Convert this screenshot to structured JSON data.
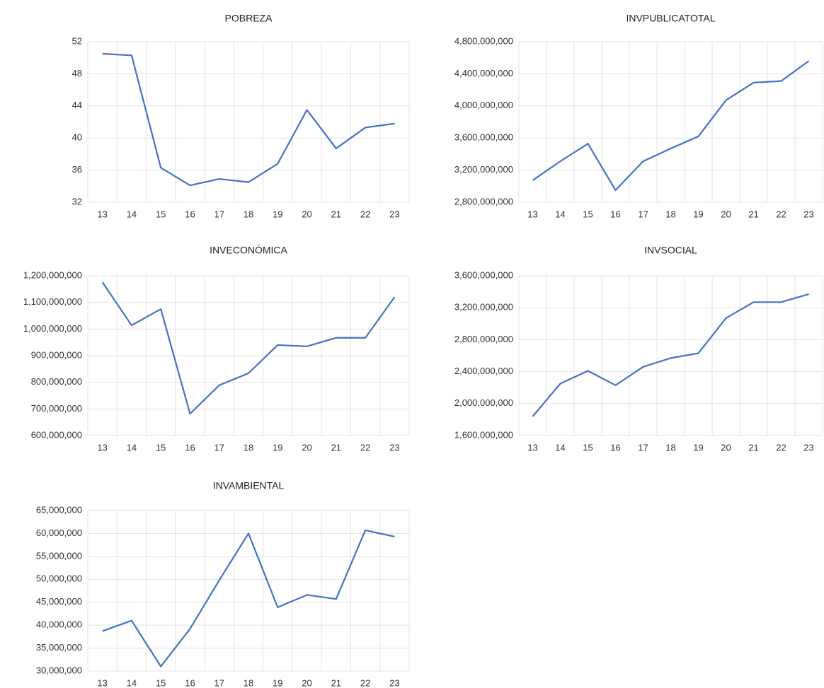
{
  "chart_data": [
    {
      "type": "line",
      "title": "POBREZA",
      "color": "#4472c4",
      "grid": true,
      "categories": [
        "13",
        "14",
        "15",
        "16",
        "17",
        "18",
        "19",
        "20",
        "21",
        "22",
        "23"
      ],
      "values": [
        50.5,
        50.3,
        36.3,
        34.1,
        34.9,
        34.5,
        36.8,
        43.5,
        38.7,
        41.3,
        41.8
      ],
      "ylim": [
        32,
        52
      ],
      "yticks": [
        32,
        36,
        40,
        44,
        48,
        52
      ]
    },
    {
      "type": "line",
      "title": "INVPUBLICATOTAL",
      "color": "#4472c4",
      "grid": true,
      "categories": [
        "13",
        "14",
        "15",
        "16",
        "17",
        "18",
        "19",
        "20",
        "21",
        "22",
        "23"
      ],
      "values": [
        3073000000,
        3310000000,
        3530000000,
        2950000000,
        3310000000,
        3470000000,
        3620000000,
        4070000000,
        4290000000,
        4310000000,
        4560000000
      ],
      "ylim": [
        2800000000,
        4800000000
      ],
      "yticks": [
        {
          "value": 2800000000,
          "label": "2,800,000,000"
        },
        {
          "value": 3200000000,
          "label": "3,200,000,000"
        },
        {
          "value": 3600000000,
          "label": "3,600,000,000"
        },
        {
          "value": 4000000000,
          "label": "4,000,000,000"
        },
        {
          "value": 4400000000,
          "label": "4,400,000,000"
        },
        {
          "value": 4800000000,
          "label": "4,800,000,000"
        }
      ]
    },
    {
      "type": "line",
      "title": "INVECONÓMICA",
      "color": "#4472c4",
      "grid": true,
      "categories": [
        "13",
        "14",
        "15",
        "16",
        "17",
        "18",
        "19",
        "20",
        "21",
        "22",
        "23"
      ],
      "values": [
        1176000000,
        1014000000,
        1075000000,
        682000000,
        789000000,
        834000000,
        940000000,
        935000000,
        967000000,
        967000000,
        1120000000
      ],
      "ylim": [
        600000000,
        1200000000
      ],
      "yticks": [
        {
          "value": 600000000,
          "label": "600,000,000"
        },
        {
          "value": 700000000,
          "label": "700,000,000"
        },
        {
          "value": 800000000,
          "label": "800,000,000"
        },
        {
          "value": 900000000,
          "label": "900,000,000"
        },
        {
          "value": 1000000000,
          "label": "1,000,000,000"
        },
        {
          "value": 1100000000,
          "label": "1,100,000,000"
        },
        {
          "value": 1200000000,
          "label": "1,200,000,000"
        }
      ]
    },
    {
      "type": "line",
      "title": "INVSOCIAL",
      "color": "#4472c4",
      "grid": true,
      "categories": [
        "13",
        "14",
        "15",
        "16",
        "17",
        "18",
        "19",
        "20",
        "21",
        "22",
        "23"
      ],
      "values": [
        1840000000,
        2250000000,
        2410000000,
        2230000000,
        2460000000,
        2570000000,
        2630000000,
        3070000000,
        3270000000,
        3270000000,
        3370000000
      ],
      "ylim": [
        1600000000,
        3600000000
      ],
      "yticks": [
        {
          "value": 1600000000,
          "label": "1,600,000,000"
        },
        {
          "value": 2000000000,
          "label": "2,000,000,000"
        },
        {
          "value": 2400000000,
          "label": "2,400,000,000"
        },
        {
          "value": 2800000000,
          "label": "2,800,000,000"
        },
        {
          "value": 3200000000,
          "label": "3,200,000,000"
        },
        {
          "value": 3600000000,
          "label": "3,600,000,000"
        }
      ]
    },
    {
      "type": "line",
      "title": "INVAMBIENTAL",
      "color": "#4472c4",
      "grid": true,
      "categories": [
        "13",
        "14",
        "15",
        "16",
        "17",
        "18",
        "19",
        "20",
        "21",
        "22",
        "23"
      ],
      "values": [
        38700000,
        41000000,
        31000000,
        39200000,
        49800000,
        60000000,
        43900000,
        46600000,
        45700000,
        60700000,
        59300000
      ],
      "ylim": [
        30000000,
        65000000
      ],
      "yticks": [
        {
          "value": 30000000,
          "label": "30,000,000"
        },
        {
          "value": 35000000,
          "label": "35,000,000"
        },
        {
          "value": 40000000,
          "label": "40,000,000"
        },
        {
          "value": 45000000,
          "label": "45,000,000"
        },
        {
          "value": 50000000,
          "label": "50,000,000"
        },
        {
          "value": 55000000,
          "label": "55,000,000"
        },
        {
          "value": 60000000,
          "label": "60,000,000"
        },
        {
          "value": 65000000,
          "label": "65,000,000"
        }
      ]
    }
  ]
}
